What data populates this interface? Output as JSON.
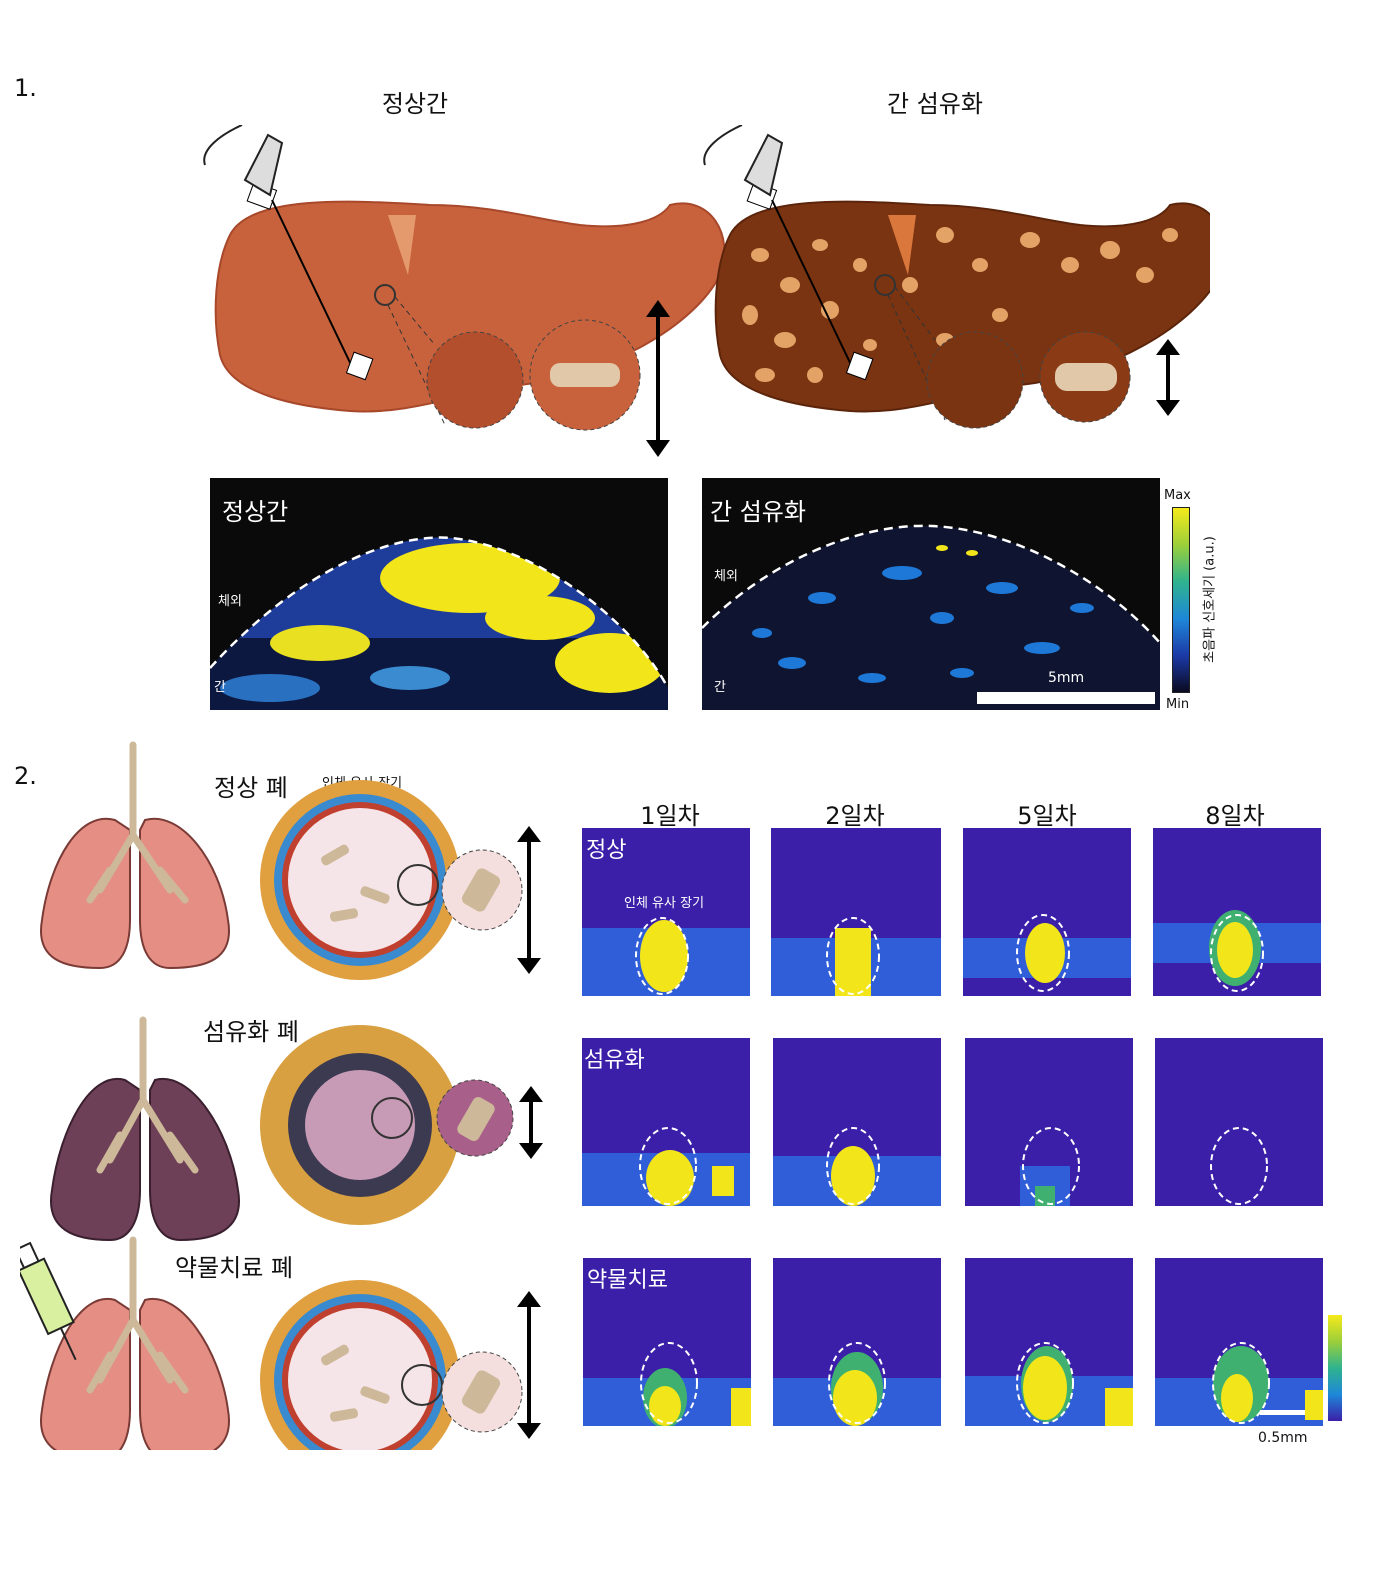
{
  "section1": {
    "number": "1.",
    "normal_title": "정상간",
    "fibrosis_title": "간 섬유화",
    "normal_image_label": "정상간",
    "fibrosis_image_label": "간 섬유화",
    "outside_label": "체외",
    "liver_label": "간",
    "scale_bar": "5mm",
    "colorbar": {
      "max": "Max",
      "min": "Min",
      "axis_label": "초음파 신호세기 (a.u.)"
    }
  },
  "section2": {
    "number": "2.",
    "rows": [
      {
        "lung_label": "정상 폐",
        "row_label": "정상",
        "organoid_label": "인체 유사 장기"
      },
      {
        "lung_label": "섬유화 폐",
        "row_label": "섬유화"
      },
      {
        "lung_label": "약물치료 폐",
        "row_label": "약물치료"
      }
    ],
    "organoid_header": "인체 유사 장기",
    "days": [
      "1일차",
      "2일차",
      "5일차",
      "8일차"
    ],
    "scale_bar": "0.5mm"
  },
  "colors": {
    "liver_normal": "#c8623d",
    "liver_fibrosis": "#7a3412",
    "lung_normal": "#e58e84",
    "lung_fibrosis": "#6e4058",
    "map_background": "#3b1fa8",
    "signal_high": "#f5ea1a"
  }
}
